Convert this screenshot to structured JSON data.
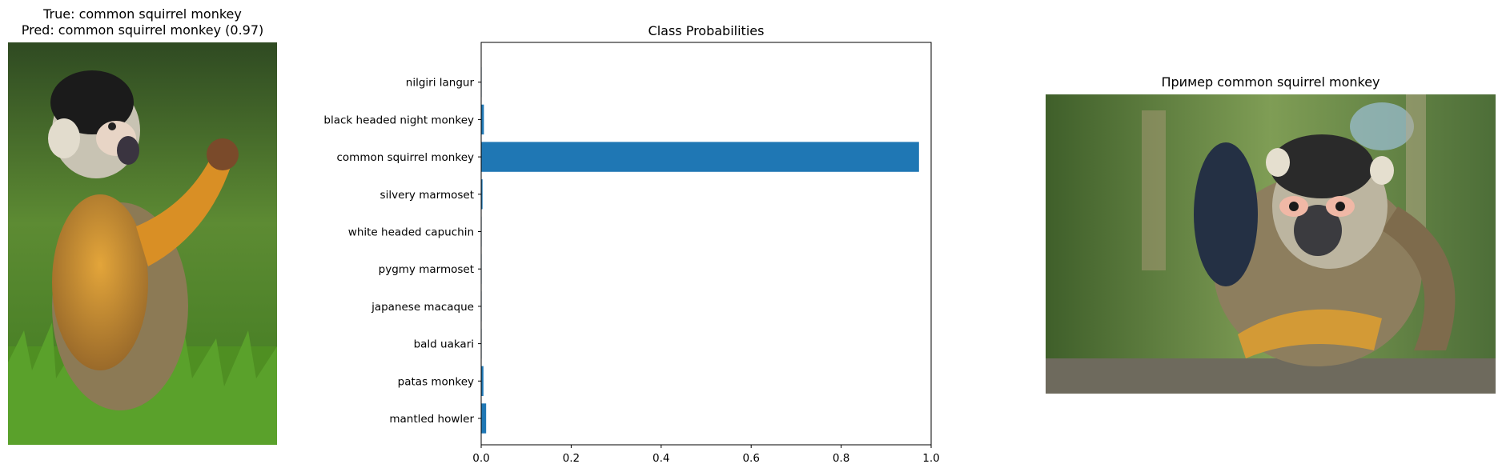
{
  "left_panel": {
    "title_line1": "True: common squirrel monkey",
    "title_line2": "Pred: common squirrel monkey (0.97)",
    "image_icon": "squirrel-monkey-photo"
  },
  "right_panel": {
    "title": "Пример common squirrel monkey",
    "image_icon": "squirrel-monkey-photo"
  },
  "chart_data": {
    "type": "bar",
    "orientation": "horizontal",
    "title": "Class Probabilities",
    "xlabel": "",
    "ylabel": "",
    "categories": [
      "mantled howler",
      "patas monkey",
      "bald uakari",
      "japanese macaque",
      "pygmy marmoset",
      "white headed capuchin",
      "silvery marmoset",
      "common squirrel monkey",
      "black headed night monkey",
      "nilgiri langur"
    ],
    "values": [
      0.011,
      0.005,
      0.001,
      0.001,
      0.001,
      0.001,
      0.003,
      0.973,
      0.006,
      0.001
    ],
    "xlim": [
      0,
      1.0
    ],
    "xticks": [
      "0.0",
      "0.2",
      "0.4",
      "0.6",
      "0.8",
      "1.0"
    ],
    "grid": false,
    "bar_color": "#1f77b4"
  }
}
